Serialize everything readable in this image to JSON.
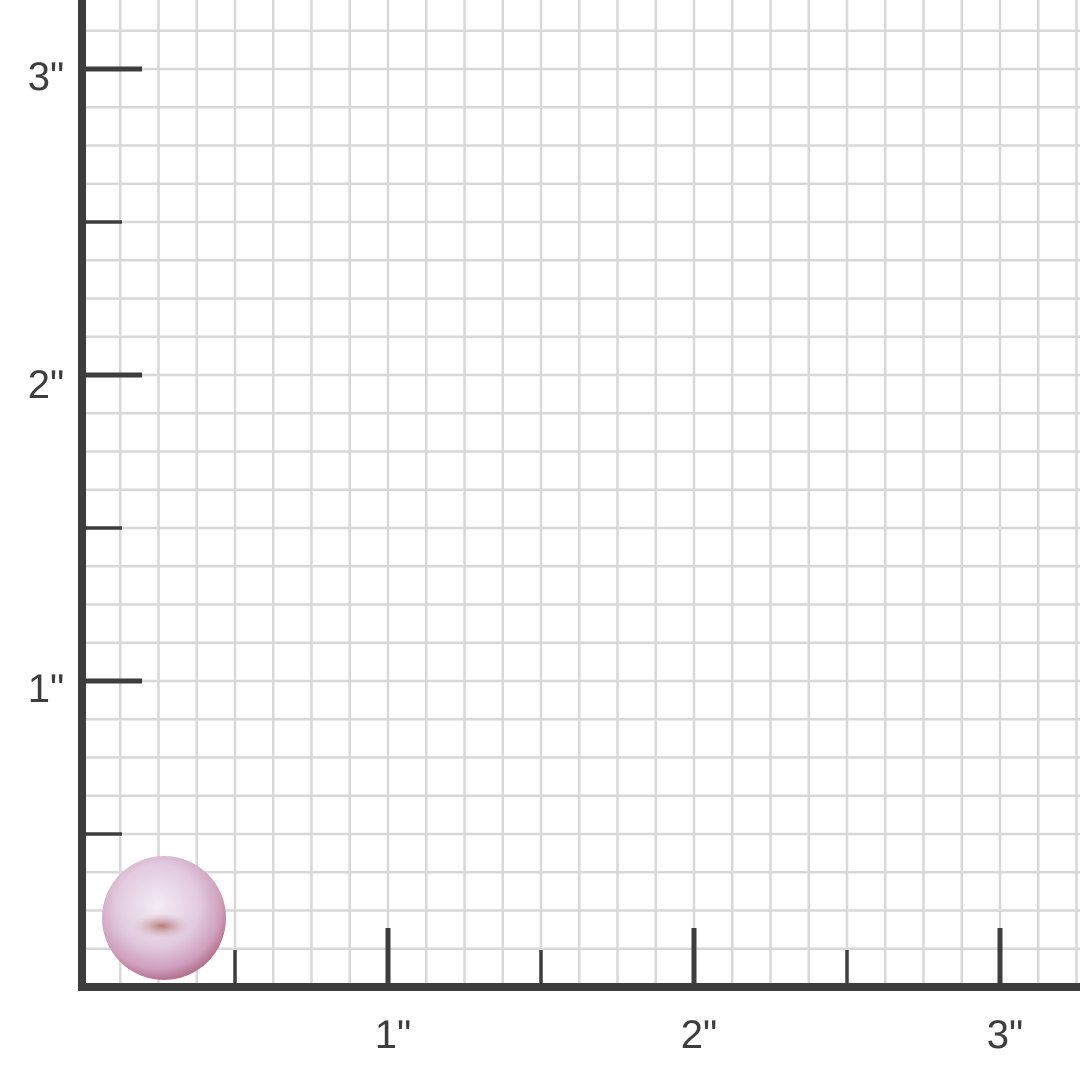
{
  "ruler": {
    "unit_mark": "\"",
    "x_labels": [
      "1\"",
      "2\"",
      "3\""
    ],
    "y_labels": [
      "1\"",
      "2\"",
      "3\""
    ],
    "subdivisions_per_inch": 8,
    "grid_color": "#d8d8d8",
    "axis_color": "#3d3d3d"
  },
  "product": {
    "type": "pearl",
    "color": "#e3c8dc",
    "diameter_inches": 0.4
  }
}
